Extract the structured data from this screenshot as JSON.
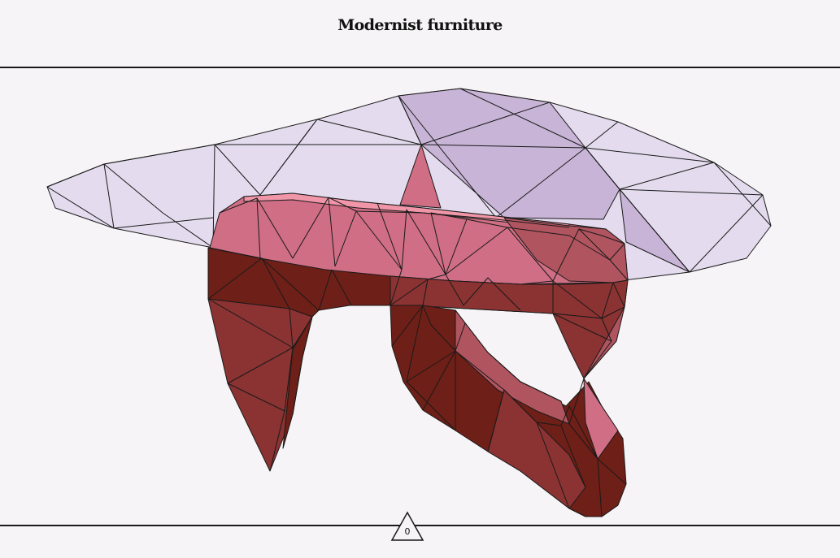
{
  "header": {
    "title": "Modernist furniture"
  },
  "model": {
    "subject": "low-poly 3D chair model",
    "palette": {
      "seat_light": "#e4dcee",
      "seat_mid": "#c8b4d6",
      "frame_pink": "#cf6e84",
      "frame_rose": "#b0545f",
      "frame_dark": "#8b3232",
      "frame_deep": "#6e1f17",
      "edge": "#1a1a1a"
    }
  },
  "footer": {
    "marker_label": "0"
  }
}
